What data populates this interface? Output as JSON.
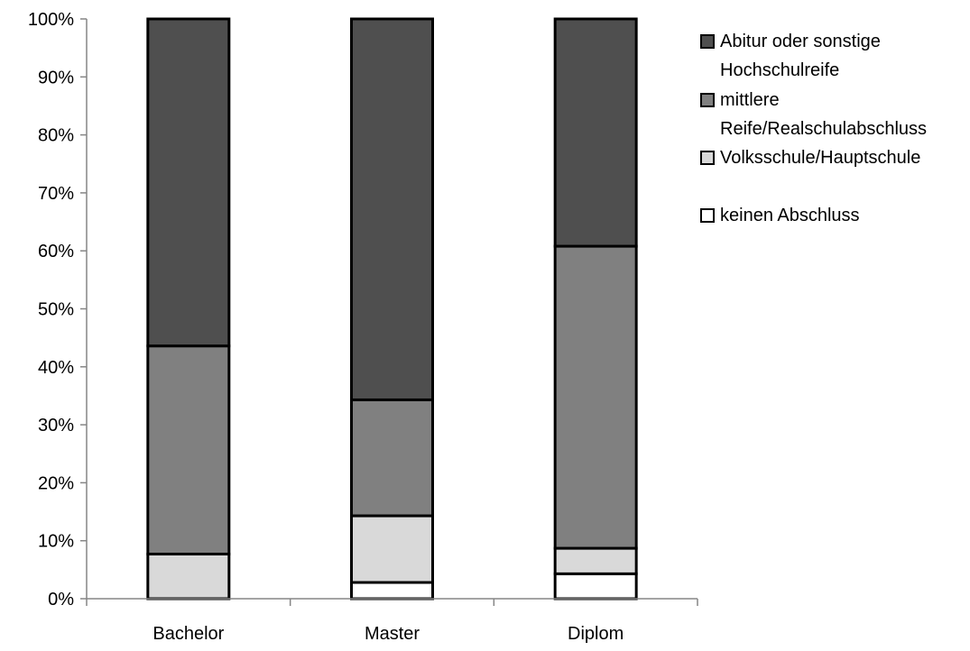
{
  "chart_data": {
    "type": "bar",
    "stacked": true,
    "percent": true,
    "title": "",
    "xlabel": "",
    "ylabel": "",
    "ylim": [
      0,
      100
    ],
    "yticks": [
      "0%",
      "10%",
      "20%",
      "30%",
      "40%",
      "50%",
      "60%",
      "70%",
      "80%",
      "90%",
      "100%"
    ],
    "categories": [
      "Bachelor",
      "Master",
      "Diplom"
    ],
    "series": [
      {
        "name": "keinen Abschluss",
        "values": [
          0,
          2.8,
          4.3
        ],
        "color": "#ffffff"
      },
      {
        "name": "Volksschule/Hauptschule",
        "values": [
          7.7,
          11.5,
          4.4
        ],
        "color": "#d9d9d9"
      },
      {
        "name": "mittlere Reife/Realschulabschluss",
        "values": [
          35.9,
          20.0,
          52.1
        ],
        "color": "#808080"
      },
      {
        "name": "Abitur oder sonstige Hochschulreife",
        "values": [
          56.4,
          65.7,
          39.2
        ],
        "color": "#4f4f4f"
      }
    ],
    "legend": {
      "placement": "right",
      "entries": [
        {
          "series": 3,
          "lines": [
            "Abitur oder sonstige",
            "Hochschulreife"
          ]
        },
        {
          "series": 2,
          "lines": [
            "mittlere",
            "Reife/Realschulabschluss"
          ]
        },
        {
          "series": 1,
          "lines": [
            "Volksschule/Hauptschule"
          ]
        },
        {
          "series": 0,
          "lines": [
            "keinen Abschluss"
          ]
        }
      ]
    },
    "grid": false
  }
}
